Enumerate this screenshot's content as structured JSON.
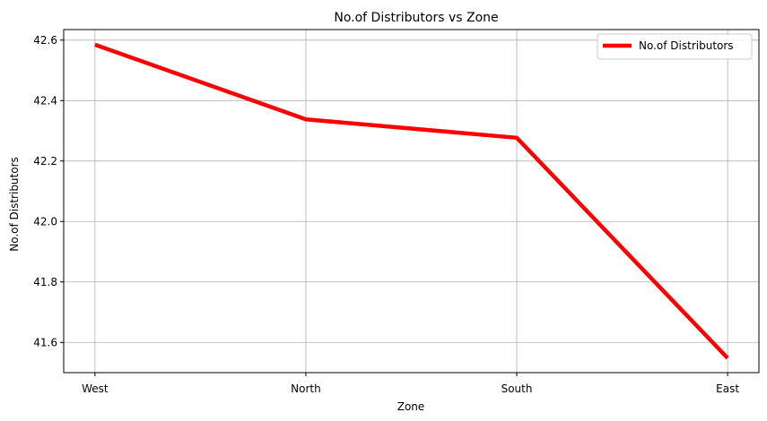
{
  "chart_data": {
    "type": "line",
    "title": "No.of Distributors vs Zone",
    "xlabel": "Zone",
    "ylabel": "No.of Distributors",
    "categories": [
      "West",
      "North",
      "South",
      "East"
    ],
    "series": [
      {
        "name": "No.of Distributors",
        "values": [
          42.585,
          42.338,
          42.277,
          41.548
        ],
        "color": "#ff0000"
      }
    ],
    "ylim": [
      41.5,
      42.635
    ],
    "yticks": [
      "41.6",
      "41.8",
      "42.0",
      "42.2",
      "42.4",
      "42.6"
    ],
    "grid": true,
    "legend_position": "top-right"
  }
}
